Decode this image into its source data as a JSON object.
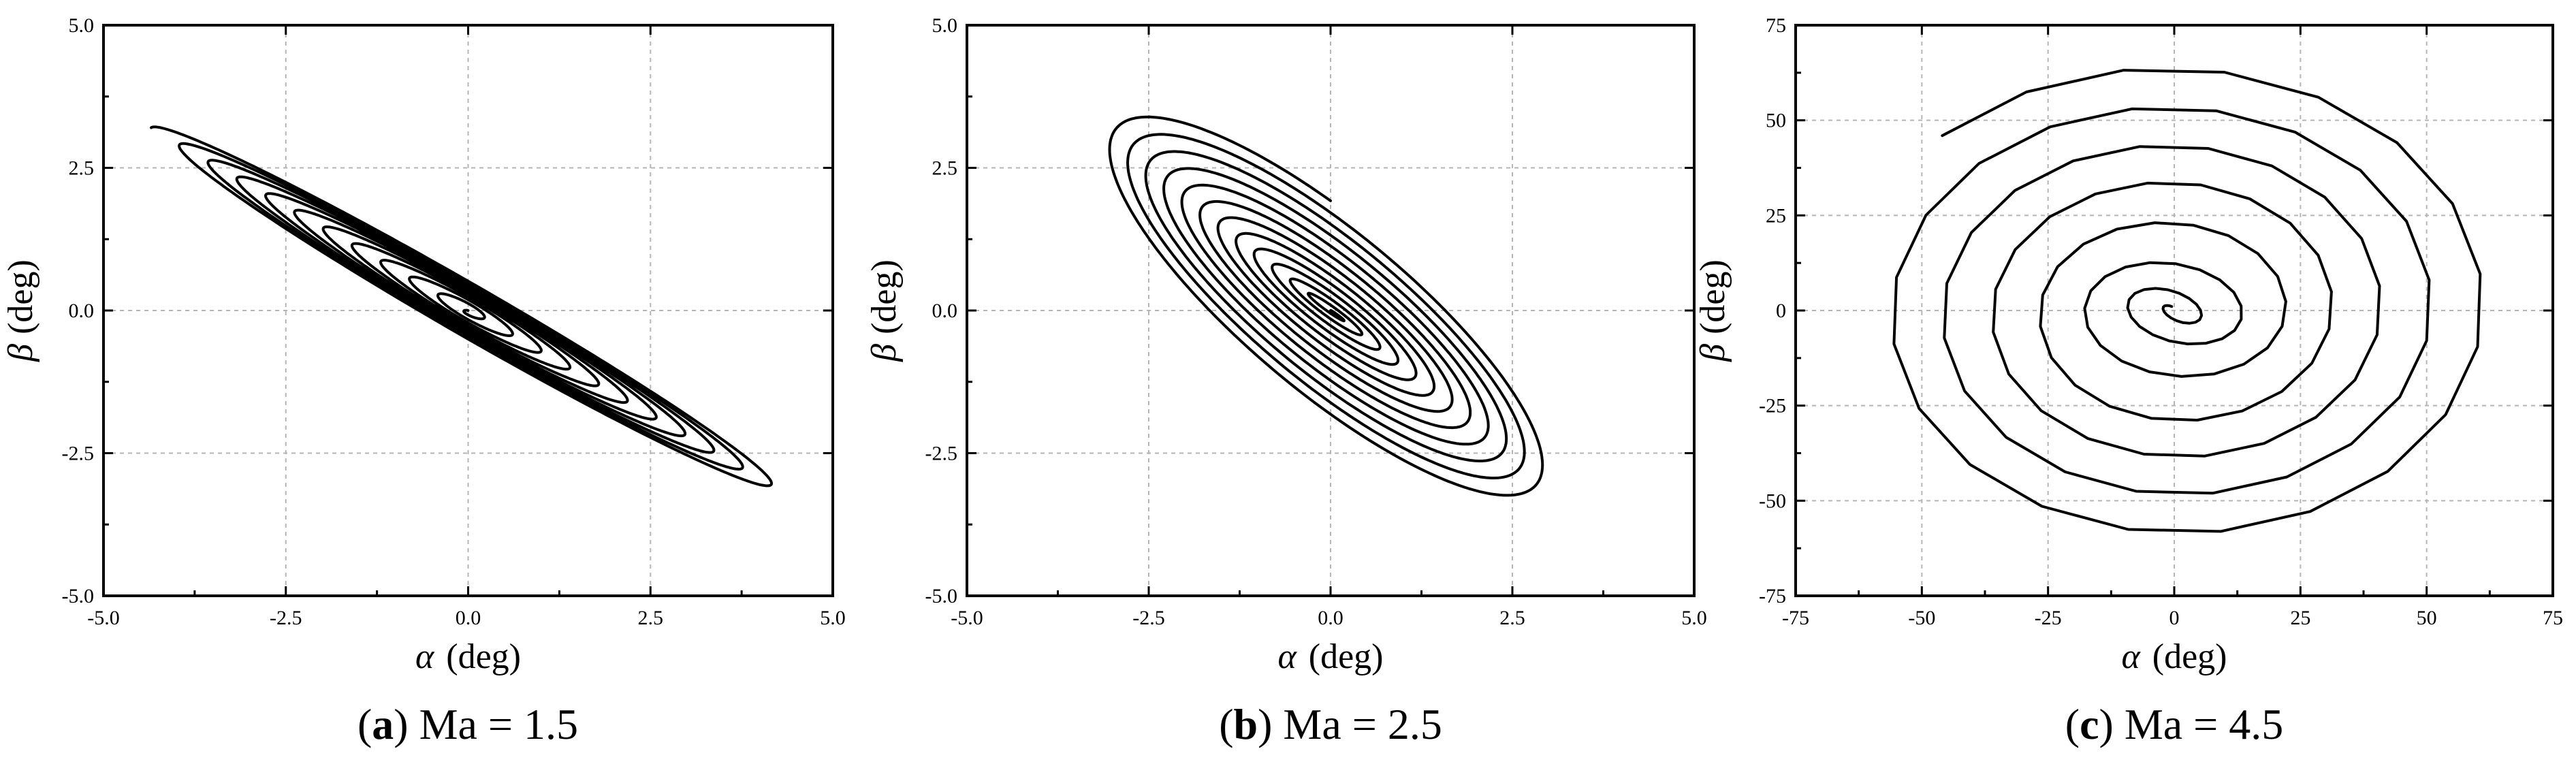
{
  "chart_data": [
    {
      "type": "line",
      "panel_letter": "a",
      "caption_text": "Ma = 1.5",
      "xlabel_symbol": "α",
      "xlabel_unit": "(deg)",
      "ylabel_symbol": "β",
      "ylabel_unit": "(deg)",
      "xlim": [
        -5,
        5
      ],
      "ylim": [
        -5,
        5
      ],
      "xticks": [
        -5,
        -2.5,
        0,
        2.5,
        5
      ],
      "yticks": [
        -5,
        -2.5,
        0,
        2.5,
        5
      ],
      "xtick_labels": [
        "-5.0",
        "-2.5",
        "0.0",
        "2.5",
        "5.0"
      ],
      "ytick_labels": [
        "-5.0",
        "-2.5",
        "0.0",
        "2.5",
        "5.0"
      ],
      "grid": true,
      "curve": {
        "kind": "expanding_tilted_ellipse_spiral",
        "center": [
          0,
          0
        ],
        "major_axis_angle_deg": -36.4,
        "start_semi_major": 0.0,
        "end_semi_major": 5.4,
        "start_semi_minor": 0.02,
        "end_semi_minor": 0.42,
        "turns": 11,
        "end_point": [
          3.9,
          -3.7
        ]
      }
    },
    {
      "type": "line",
      "panel_letter": "b",
      "caption_text": "Ma = 2.5",
      "xlabel_symbol": "α",
      "xlabel_unit": "(deg)",
      "ylabel_symbol": "β",
      "ylabel_unit": "(deg)",
      "xlim": [
        -5,
        5
      ],
      "ylim": [
        -5,
        5
      ],
      "xticks": [
        -5,
        -2.5,
        0,
        2.5,
        5
      ],
      "yticks": [
        -5,
        -2.5,
        0,
        2.5,
        5
      ],
      "xtick_labels": [
        "-5.0",
        "-2.5",
        "0.0",
        "2.5",
        "5.0"
      ],
      "ytick_labels": [
        "-5.0",
        "-2.5",
        "0.0",
        "2.5",
        "5.0"
      ],
      "grid": true,
      "curve": {
        "kind": "expanding_lens_spiral",
        "center": [
          0,
          0
        ],
        "amplitude_start": 0.12,
        "amplitude_end": 3.1,
        "turns": 12,
        "end_point": [
          3.4,
          -3.1
        ]
      }
    },
    {
      "type": "line",
      "panel_letter": "c",
      "caption_text": "Ma = 4.5",
      "xlabel_symbol": "α",
      "xlabel_unit": "(deg)",
      "ylabel_symbol": "β",
      "ylabel_unit": "(deg)",
      "xlim": [
        -75,
        75
      ],
      "ylim": [
        -75,
        75
      ],
      "xticks": [
        -75,
        -50,
        -25,
        0,
        25,
        50,
        75
      ],
      "yticks": [
        -75,
        -50,
        -25,
        0,
        25,
        50,
        75
      ],
      "xtick_labels": [
        "-75",
        "-50",
        "-25",
        "0",
        "25",
        "50",
        "75"
      ],
      "ytick_labels": [
        "-75",
        "-50",
        "-25",
        "0",
        "25",
        "50",
        "75"
      ],
      "grid": true,
      "curve": {
        "kind": "expanding_spiral",
        "center": [
          0,
          0
        ],
        "radius_start": 1.5,
        "radius_end": 65,
        "turns": 7,
        "inner_tilt_deg": -40,
        "end_point": [
          22,
          -65
        ]
      }
    }
  ]
}
